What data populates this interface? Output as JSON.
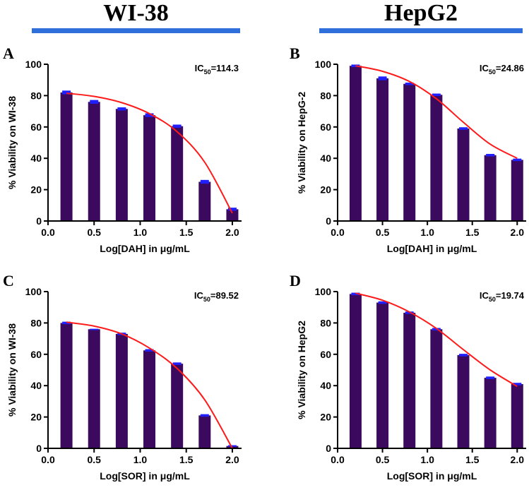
{
  "header": {
    "left_title": "WI-38",
    "right_title": "HepG2"
  },
  "colors": {
    "bar": "#3b0a5e",
    "error": "#1f1fff",
    "fit": "#ff1a1a",
    "header_bar": "#2f6fdc"
  },
  "chart_data": [
    {
      "type": "bar",
      "panel": "A",
      "ic50_prefix": "IC",
      "ic50_sub": "50",
      "ic50_value": "=114.3",
      "x": [
        0.2,
        0.5,
        0.8,
        1.1,
        1.4,
        1.7,
        2.0
      ],
      "values": [
        82,
        76,
        71.5,
        67.5,
        60.5,
        25,
        7.5
      ],
      "errors": [
        1.2,
        1.2,
        1,
        1.2,
        1,
        1.2,
        1
      ],
      "fit": [
        [
          0.2,
          81.5
        ],
        [
          0.5,
          79.5
        ],
        [
          0.8,
          75.5
        ],
        [
          1.1,
          68.5
        ],
        [
          1.4,
          57
        ],
        [
          1.7,
          37.5
        ],
        [
          2.0,
          5
        ]
      ],
      "xlabel": "Log[DAH] in μg/mL",
      "ylabel": "% Viability on WI-38",
      "xlim": [
        0.0,
        2.1
      ],
      "ylim": [
        0,
        100
      ],
      "xticks": [
        "0.0",
        "0.5",
        "1.0",
        "1.5",
        "2.0"
      ],
      "yticks": [
        "0",
        "20",
        "40",
        "60",
        "80",
        "100"
      ]
    },
    {
      "type": "bar",
      "panel": "B",
      "ic50_prefix": "IC",
      "ic50_sub": "50",
      "ic50_value": "=24.86",
      "x": [
        0.2,
        0.5,
        0.8,
        1.1,
        1.4,
        1.7,
        2.0
      ],
      "values": [
        99,
        91,
        87.5,
        80.5,
        59,
        42,
        39
      ],
      "errors": [
        0.8,
        1.2,
        0.8,
        0.8,
        0.8,
        0.8,
        0.8
      ],
      "fit": [
        [
          0.2,
          99
        ],
        [
          0.5,
          95.5
        ],
        [
          0.8,
          89
        ],
        [
          1.1,
          78
        ],
        [
          1.4,
          63
        ],
        [
          1.7,
          49
        ],
        [
          2.0,
          40
        ]
      ],
      "xlabel": "Log[DAH] in μg/mL",
      "ylabel": "% Viability on HepG-2",
      "xlim": [
        0.0,
        2.1
      ],
      "ylim": [
        0,
        100
      ],
      "xticks": [
        "0.0",
        "0.5",
        "1.0",
        "1.5",
        "2.0"
      ],
      "yticks": [
        "0",
        "20",
        "40",
        "60",
        "80",
        "100"
      ]
    },
    {
      "type": "bar",
      "panel": "C",
      "ic50_prefix": "IC",
      "ic50_sub": "50",
      "ic50_value": "=89.52",
      "x": [
        0.2,
        0.5,
        0.8,
        1.1,
        1.4,
        1.7,
        2.0
      ],
      "values": [
        80,
        76,
        73,
        62.5,
        54,
        21,
        1.5
      ],
      "errors": [
        0.8,
        0.3,
        0.8,
        0.8,
        0.8,
        0.8,
        0.5
      ],
      "fit": [
        [
          0.2,
          80.5
        ],
        [
          0.5,
          78
        ],
        [
          0.8,
          73
        ],
        [
          1.1,
          64
        ],
        [
          1.4,
          51
        ],
        [
          1.7,
          31
        ],
        [
          2.0,
          0
        ]
      ],
      "xlabel": "Log[SOR] in μg/mL",
      "ylabel": "% Viability on WI-38",
      "xlim": [
        0.0,
        2.1
      ],
      "ylim": [
        0,
        100
      ],
      "xticks": [
        "0.0",
        "0.5",
        "1.0",
        "1.5",
        "2.0"
      ],
      "yticks": [
        "0",
        "20",
        "40",
        "60",
        "80",
        "100"
      ]
    },
    {
      "type": "bar",
      "panel": "D",
      "ic50_prefix": "IC",
      "ic50_sub": "50",
      "ic50_value": "=19.74",
      "x": [
        0.2,
        0.5,
        0.8,
        1.1,
        1.4,
        1.7,
        2.0
      ],
      "values": [
        98.5,
        93,
        86.5,
        76,
        59.5,
        45,
        41
      ],
      "errors": [
        0.8,
        0.8,
        0.8,
        0.8,
        0.8,
        0.8,
        0.8
      ],
      "fit": [
        [
          0.2,
          99
        ],
        [
          0.5,
          94.5
        ],
        [
          0.8,
          87
        ],
        [
          1.1,
          76.5
        ],
        [
          1.4,
          63
        ],
        [
          1.7,
          50
        ],
        [
          2.0,
          39.5
        ]
      ],
      "xlabel": "Log[SOR] in μg/mL",
      "ylabel": "% Viability on HepG2",
      "xlim": [
        0.0,
        2.1
      ],
      "ylim": [
        0,
        100
      ],
      "xticks": [
        "0.0",
        "0.5",
        "1.0",
        "1.5",
        "2.0"
      ],
      "yticks": [
        "0",
        "20",
        "40",
        "60",
        "80",
        "100"
      ]
    }
  ]
}
